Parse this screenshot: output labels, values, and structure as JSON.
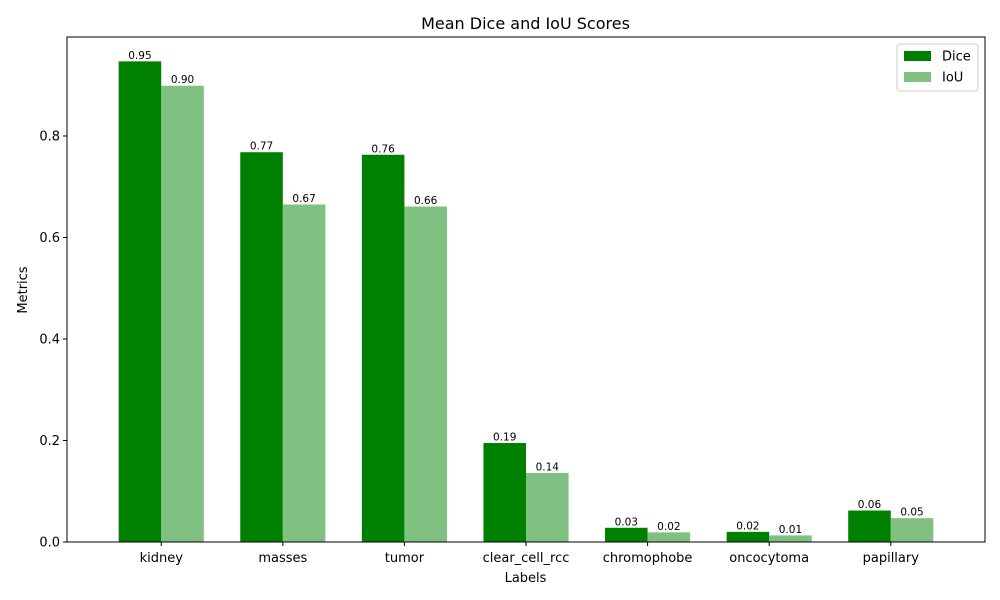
{
  "chart_data": {
    "type": "bar",
    "title": "Mean Dice and IoU Scores",
    "xlabel": "Labels",
    "ylabel": "Metrics",
    "categories": [
      "kidney",
      "masses",
      "tumor",
      "clear_cell_rcc",
      "chromophobe",
      "oncocytoma",
      "papillary"
    ],
    "series": [
      {
        "name": "Dice",
        "color": "#008000",
        "values": [
          0.947,
          0.768,
          0.763,
          0.195,
          0.028,
          0.02,
          0.062
        ],
        "labels": [
          "0.95",
          "0.77",
          "0.76",
          "0.19",
          "0.03",
          "0.02",
          "0.06"
        ]
      },
      {
        "name": "IoU",
        "color": "#80c080",
        "values": [
          0.899,
          0.665,
          0.661,
          0.136,
          0.019,
          0.013,
          0.047
        ],
        "labels": [
          "0.90",
          "0.67",
          "0.66",
          "0.14",
          "0.02",
          "0.01",
          "0.05"
        ]
      }
    ],
    "ylim": [
      0,
      0.995
    ],
    "yticks": [
      0.0,
      0.2,
      0.4,
      0.6,
      0.8
    ],
    "ytick_labels": [
      "0.0",
      "0.2",
      "0.4",
      "0.6",
      "0.8"
    ],
    "grid": false,
    "legend_position": "top-right"
  }
}
